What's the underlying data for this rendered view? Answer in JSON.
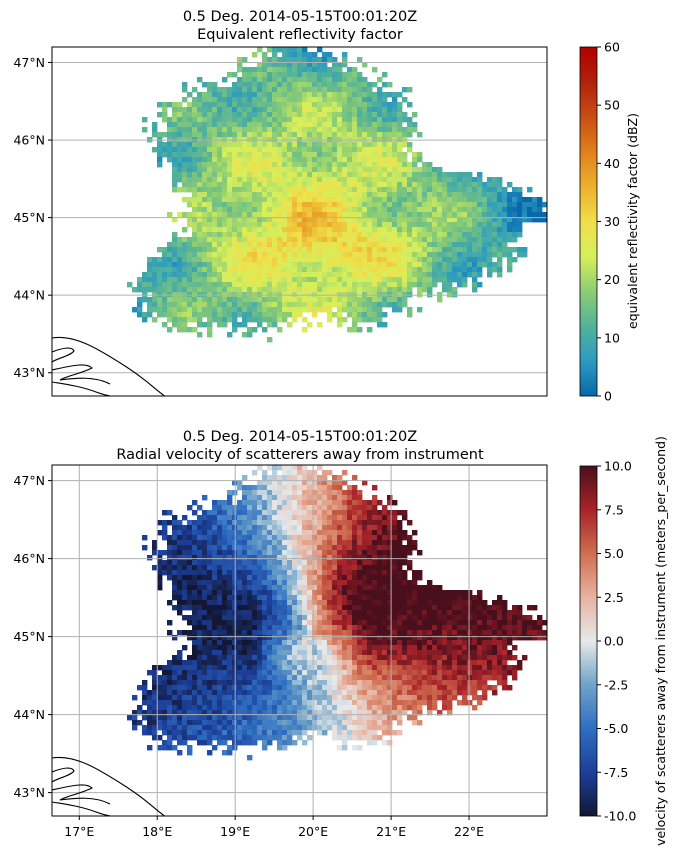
{
  "chart_data": [
    {
      "type": "heatmap",
      "title_line1": "0.5 Deg. 2014-05-15T00:01:20Z",
      "title_line2": "Equivalent reflectivity factor",
      "colorbar_label": "equivalent reflectivity factor (dBZ)",
      "colorbar_ticks": [
        0,
        10,
        20,
        30,
        40,
        50,
        60
      ],
      "colorbar_range": [
        0,
        60
      ],
      "colormap": [
        "#0868ac",
        "#2c9bbf",
        "#54b29a",
        "#8ccd74",
        "#d6ef5c",
        "#f0df4a",
        "#ecb02e",
        "#e0801e",
        "#c84e14",
        "#b0220c",
        "#b20000"
      ],
      "lat_ticks": [
        "43°N",
        "44°N",
        "45°N",
        "46°N",
        "47°N"
      ],
      "lat_values": [
        43,
        44,
        45,
        46,
        47
      ],
      "lon_range": [
        16.65,
        23.0
      ],
      "lat_range": [
        42.7,
        47.2
      ],
      "gridlines": "horizontal only"
    },
    {
      "type": "heatmap",
      "title_line1": "0.5 Deg. 2014-05-15T00:01:20Z",
      "title_line2": "Radial velocity of scatterers away from instrument",
      "colorbar_label": "velocity of scatterers away from instrument (meters_per_second)",
      "colorbar_ticks": [
        "-10.0",
        "-7.5",
        "-5.0",
        "-2.5",
        "0.0",
        "2.5",
        "5.0",
        "7.5",
        "10.0"
      ],
      "colorbar_range": [
        -10,
        10
      ],
      "colormap": [
        "#131734",
        "#1c3f9a",
        "#2f6fc2",
        "#6fa3c8",
        "#e6e9ea",
        "#e7b3a0",
        "#cf6e50",
        "#a9232a",
        "#4a0f1c"
      ],
      "lat_ticks": [
        "43°N",
        "44°N",
        "45°N",
        "46°N",
        "47°N"
      ],
      "lat_values": [
        43,
        44,
        45,
        46,
        47
      ],
      "lon_ticks": [
        "17°E",
        "18°E",
        "19°E",
        "20°E",
        "21°E",
        "22°E"
      ],
      "lon_values": [
        17,
        18,
        19,
        20,
        21,
        22
      ],
      "lon_range": [
        16.65,
        23.0
      ],
      "lat_range": [
        42.7,
        47.2
      ],
      "gridlines": "both"
    }
  ]
}
